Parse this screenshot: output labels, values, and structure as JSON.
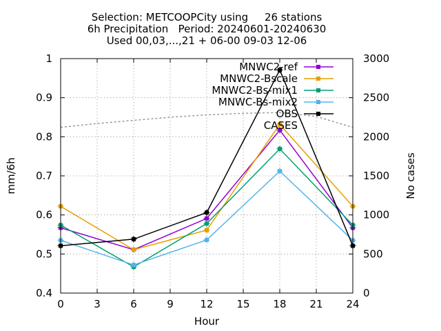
{
  "chart_data": {
    "type": "line",
    "title_lines": [
      "Selection: METCOOPCity using     26 stations",
      "6h Precipitation   Period: 20240601-20240630",
      "Used 00,03,...,21 + 06-00 09-03 12-06"
    ],
    "xlabel": "Hour",
    "ylabel": "mm/6h",
    "y2label": "No cases",
    "xlim": [
      0,
      24
    ],
    "ylim": [
      0.4,
      1.0
    ],
    "y2lim": [
      0,
      3000
    ],
    "xticks": [
      0,
      3,
      6,
      9,
      12,
      15,
      18,
      21,
      24
    ],
    "yticks": [
      0.4,
      0.5,
      0.6,
      0.7,
      0.8,
      0.9,
      1
    ],
    "y2ticks": [
      0,
      500,
      1000,
      1500,
      2000,
      2500,
      3000
    ],
    "xtick_labels": [
      "0",
      "3",
      "6",
      "9",
      "12",
      "15",
      "18",
      "21",
      "24"
    ],
    "ytick_labels": [
      "0.4",
      "0.5",
      "0.6",
      "0.7",
      "0.8",
      "0.9",
      "1"
    ],
    "y2tick_labels": [
      "0",
      "500",
      "1000",
      "1500",
      "2000",
      "2500",
      "3000"
    ],
    "grid": true,
    "legend_position": "top-right",
    "x": [
      0,
      6,
      12,
      18,
      24
    ],
    "series": [
      {
        "name": "MNWC2-ref",
        "color": "#9400d3",
        "values": [
          0.567,
          0.511,
          0.591,
          0.817,
          0.567
        ]
      },
      {
        "name": "MNWC2-Bscale",
        "color": "#e69f00",
        "values": [
          0.622,
          0.511,
          0.561,
          0.832,
          0.622
        ]
      },
      {
        "name": "MNWC2-Bs-mix1",
        "color": "#009e73",
        "values": [
          0.574,
          0.467,
          0.578,
          0.769,
          0.574
        ]
      },
      {
        "name": "MNWC-Bs-mix2",
        "color": "#56b4e9",
        "values": [
          0.535,
          0.472,
          0.536,
          0.712,
          0.535
        ]
      },
      {
        "name": "OBS",
        "color": "#000000",
        "values": [
          0.521,
          0.538,
          0.606,
          0.971,
          0.521
        ]
      }
    ],
    "cases": {
      "name": "CASES",
      "color": "#999999",
      "axis": "y2",
      "x": [
        0,
        3,
        6,
        9,
        12,
        15,
        18,
        21,
        24
      ],
      "values": [
        2120,
        2170,
        2210,
        2250,
        2280,
        2300,
        2310,
        2260,
        2120
      ]
    }
  }
}
